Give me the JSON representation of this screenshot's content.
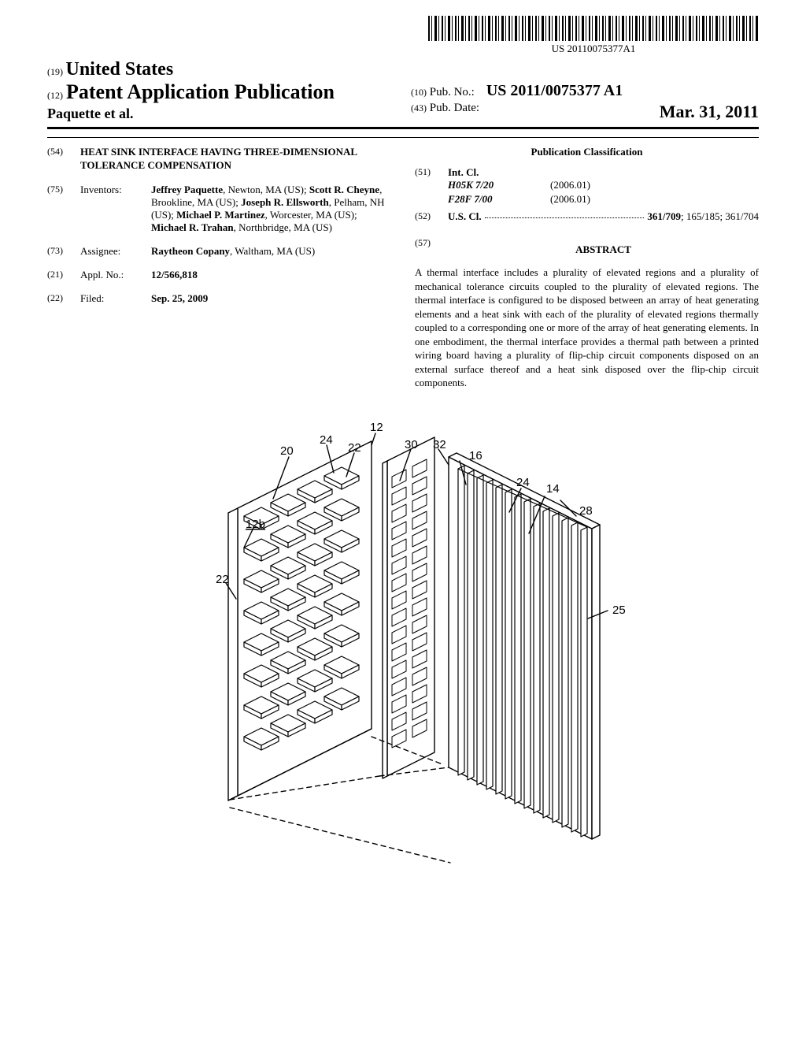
{
  "barcode_text": "US 20110075377A1",
  "header": {
    "code19": "(19)",
    "country": "United States",
    "code12": "(12)",
    "pub_type": "Patent Application Publication",
    "authors": "Paquette et al.",
    "code10": "(10)",
    "pubno_label": "Pub. No.:",
    "pubno_value": "US 2011/0075377 A1",
    "code43": "(43)",
    "pubdate_label": "Pub. Date:",
    "pubdate_value": "Mar. 31, 2011"
  },
  "left": {
    "title_code": "(54)",
    "title": "HEAT SINK INTERFACE HAVING THREE-DIMENSIONAL TOLERANCE COMPENSATION",
    "inventors_code": "(75)",
    "inventors_label": "Inventors:",
    "inventors_html": "<b>Jeffrey Paquette</b>, Newton, MA (US); <b>Scott R. Cheyne</b>, Brookline, MA (US); <b>Joseph R. Ellsworth</b>, Pelham, NH (US); <b>Michael P. Martinez</b>, Worcester, MA (US); <b>Michael R. Trahan</b>, Northbridge, MA (US)",
    "assignee_code": "(73)",
    "assignee_label": "Assignee:",
    "assignee_value": "<b>Raytheon Copany</b>, Waltham, MA (US)",
    "applno_code": "(21)",
    "applno_label": "Appl. No.:",
    "applno_value": "12/566,818",
    "filed_code": "(22)",
    "filed_label": "Filed:",
    "filed_value": "Sep. 25, 2009"
  },
  "right": {
    "classification_heading": "Publication Classification",
    "intcl_code": "(51)",
    "intcl_label": "Int. Cl.",
    "intcl_rows": [
      {
        "cls": "H05K  7/20",
        "ver": "(2006.01)"
      },
      {
        "cls": "F28F  7/00",
        "ver": "(2006.01)"
      }
    ],
    "uscl_code": "(52)",
    "uscl_label": "U.S. Cl.",
    "uscl_value_bold": "361/709",
    "uscl_value_rest": "; 165/185; 361/704",
    "abstract_code": "(57)",
    "abstract_heading": "ABSTRACT",
    "abstract_text": "A thermal interface includes a plurality of elevated regions and a plurality of mechanical tolerance circuits coupled to the plurality of elevated regions. The thermal interface is configured to be disposed between an array of heat generating elements and a heat sink with each of the plurality of elevated regions thermally coupled to a corresponding one or more of the array of heat generating elements. In one embodiment, the thermal interface provides a thermal path between a printed wiring board having a plurality of flip-chip circuit components disposed on an external surface thereof and a heat sink disposed over the flip-chip circuit components."
  },
  "figure": {
    "refs": {
      "r12": "12",
      "r24a": "24",
      "r20": "20",
      "r22a": "22",
      "r22b": "22",
      "r12b": "12b",
      "r30": "30",
      "r16": "16",
      "r32": "32",
      "r24b": "24",
      "r14": "14",
      "r28": "28",
      "r25": "25"
    }
  }
}
